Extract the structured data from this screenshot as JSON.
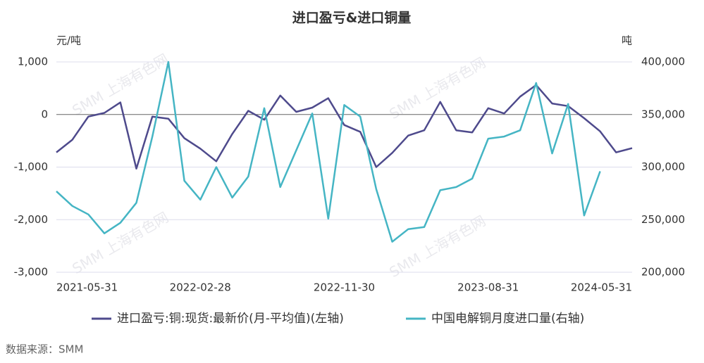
{
  "chart_data": {
    "type": "line",
    "title": "进口盈亏&进口铜量",
    "y_label": "元/吨",
    "y2_label": "吨",
    "source": "数据来源：SMM",
    "watermark": "SMM 上海有色网",
    "categories": [
      "2021-05-31",
      null,
      null,
      null,
      null,
      null,
      null,
      null,
      null,
      "2022-02-28",
      null,
      null,
      null,
      null,
      null,
      null,
      null,
      null,
      "2022-11-30",
      null,
      null,
      null,
      null,
      null,
      null,
      null,
      null,
      "2023-08-31",
      null,
      null,
      null,
      null,
      null,
      null,
      null,
      null,
      "2024-05-31"
    ],
    "ylim": [
      -3000,
      1000
    ],
    "yticks": [
      {
        "value": -3000,
        "label": "-3,000"
      },
      {
        "value": -2000,
        "label": "-2,000"
      },
      {
        "value": -1000,
        "label": "-1,000"
      },
      0,
      {
        "value": 1000,
        "label": "1,000"
      }
    ],
    "y2lim": [
      200000,
      400000
    ],
    "y2ticks": [
      {
        "value": 200000,
        "label": "200,000"
      },
      {
        "value": 250000,
        "label": "250,000"
      },
      {
        "value": 300000,
        "label": "300,000"
      },
      {
        "value": 350000,
        "label": "350,000"
      },
      {
        "value": 400000,
        "label": "400,000"
      }
    ],
    "grid": true,
    "legend": "bottom",
    "series": [
      {
        "name": "进口盈亏:铜:现货:最新价(月-平均值)(左轴)",
        "color": "#4e4a8c",
        "values": [
          -720,
          -480,
          -40,
          30,
          230,
          -1030,
          -40,
          -80,
          -450,
          -650,
          -890,
          -370,
          70,
          -100,
          360,
          50,
          130,
          310,
          -200,
          -330,
          -1000,
          -730,
          -400,
          -300,
          240,
          -300,
          -340,
          120,
          20,
          340,
          560,
          210,
          160,
          -70,
          -320,
          -720,
          -640
        ]
      },
      {
        "name": "中国电解铜月度进口量(右轴)",
        "color": "#45b5c4",
        "axis": "y2",
        "values": [
          277000,
          263000,
          255000,
          237000,
          247000,
          266000,
          329000,
          400000,
          287000,
          269000,
          300000,
          271000,
          291000,
          356000,
          281000,
          316000,
          351000,
          251000,
          359000,
          348000,
          279000,
          229000,
          241000,
          243000,
          278000,
          281000,
          289000,
          327000,
          329000,
          335000,
          380000,
          313000,
          360000,
          254000,
          296000,
          null,
          null
        ]
      }
    ]
  }
}
